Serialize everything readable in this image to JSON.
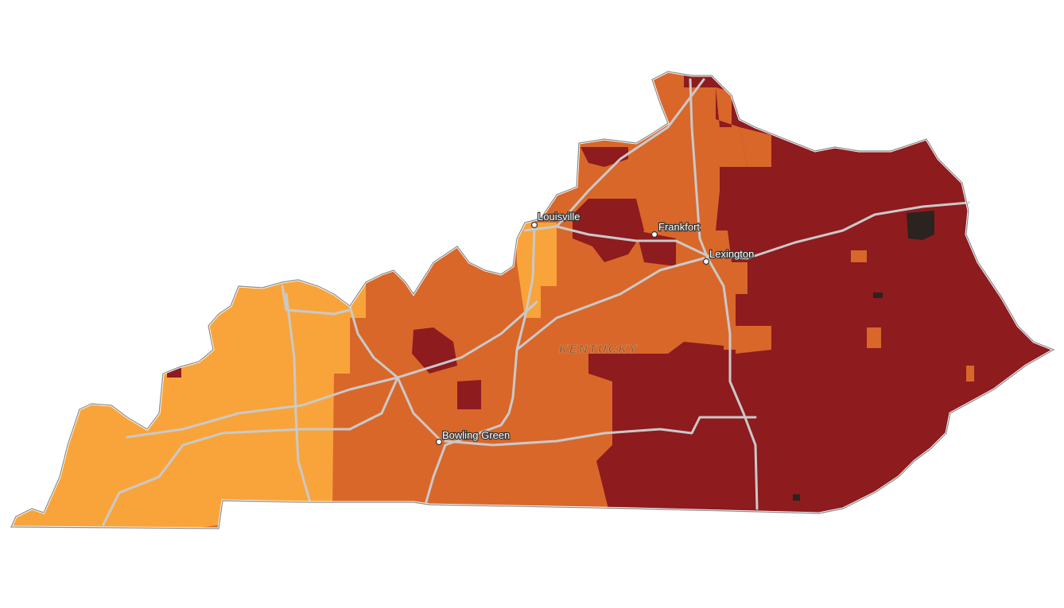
{
  "map": {
    "state_label": "KENTUCKY",
    "cities": [
      {
        "name": "Louisville"
      },
      {
        "name": "Frankfort"
      },
      {
        "name": "Lexington"
      },
      {
        "name": "Bowling Green"
      }
    ],
    "colors": {
      "class_low": "#f9a43a",
      "class_mid": "#d9672a",
      "class_high": "#8e1b1e",
      "class_highest": "#2b231f",
      "roads": "#c9c9c9",
      "border": "#8a8a8a"
    }
  }
}
